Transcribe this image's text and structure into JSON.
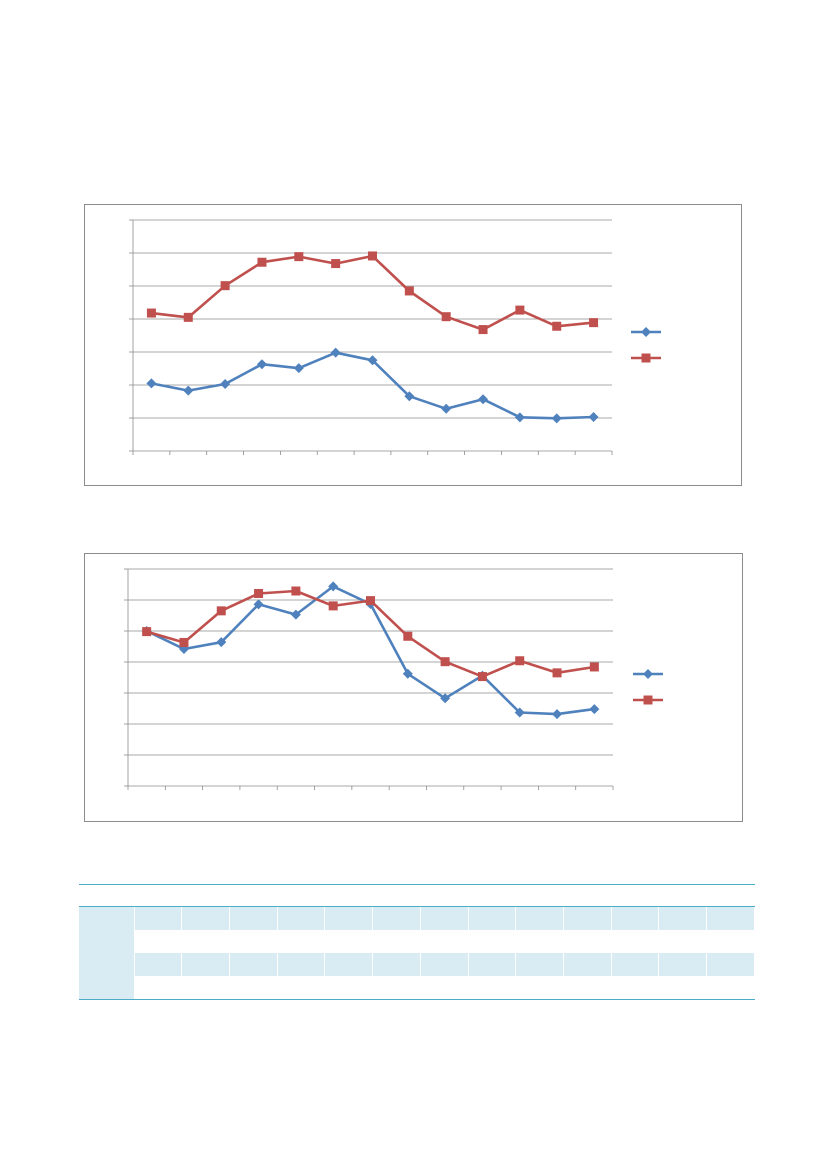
{
  "page": {},
  "chart_data": [
    {
      "type": "line",
      "title": "",
      "xlabel": "",
      "ylabel": "",
      "x": [
        1,
        2,
        3,
        4,
        5,
        6,
        7,
        8,
        9,
        10,
        11,
        12,
        13
      ],
      "ylim": [
        0,
        7
      ],
      "y_gridlines": 7,
      "grid": true,
      "legend": "right",
      "series": [
        {
          "values": [
            2.05,
            1.83,
            2.03,
            2.63,
            2.51,
            2.98,
            2.75,
            1.66,
            1.28,
            1.57,
            1.02,
            0.99,
            1.03
          ],
          "color": "#4f81bd",
          "marker": "diamond"
        },
        {
          "values": [
            4.18,
            4.05,
            5.01,
            5.72,
            5.89,
            5.68,
            5.91,
            4.85,
            4.07,
            3.68,
            4.27,
            3.78,
            3.89
          ],
          "color": "#c0504d",
          "marker": "square"
        }
      ]
    },
    {
      "type": "line",
      "title": "",
      "xlabel": "",
      "ylabel": "",
      "x": [
        1,
        2,
        3,
        4,
        5,
        6,
        7,
        8,
        9,
        10,
        11,
        12,
        13
      ],
      "ylim": [
        0,
        7
      ],
      "y_gridlines": 7,
      "grid": true,
      "legend": "right",
      "series": [
        {
          "values": [
            5.0,
            4.42,
            4.64,
            5.86,
            5.53,
            6.44,
            5.87,
            3.62,
            2.83,
            3.56,
            2.37,
            2.32,
            2.48
          ],
          "color": "#4f81bd",
          "marker": "diamond"
        },
        {
          "values": [
            4.98,
            4.63,
            5.65,
            6.21,
            6.29,
            5.81,
            5.98,
            4.83,
            4.01,
            3.53,
            4.04,
            3.65,
            3.84
          ],
          "color": "#c0504d",
          "marker": "square"
        }
      ]
    }
  ],
  "table": {
    "header_color": "#4bacc6",
    "band_color": "#d9ecf3",
    "columns": 13,
    "rows": 4
  }
}
